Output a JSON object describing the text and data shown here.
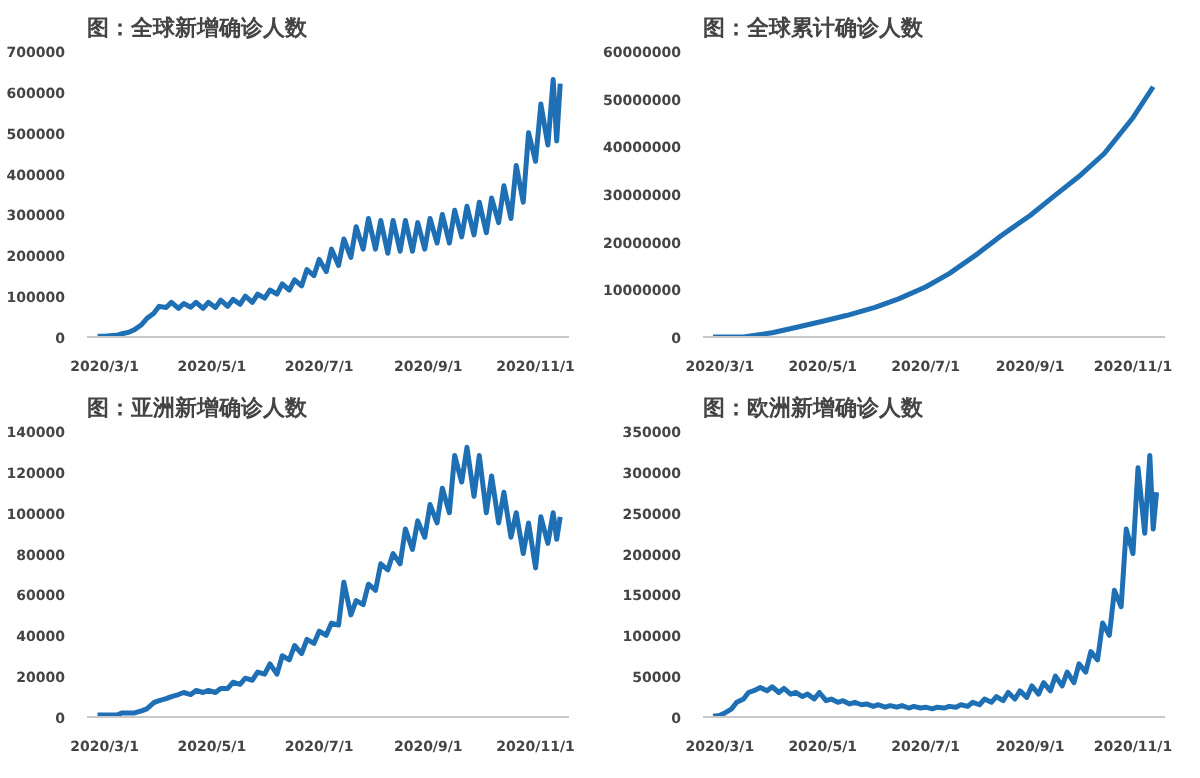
{
  "chart_data": [
    {
      "type": "line",
      "title": "图：全球新增确诊人数",
      "grid": false,
      "marker": "none",
      "line_style": "solid",
      "xlim": [
        "2020-02-20",
        "2020-11-20"
      ],
      "ylim": [
        0,
        700000
      ],
      "xticks": [
        {
          "value": "2020-03-01",
          "label": "2020/3/1"
        },
        {
          "value": "2020-05-01",
          "label": "2020/5/1"
        },
        {
          "value": "2020-07-01",
          "label": "2020/7/1"
        },
        {
          "value": "2020-09-01",
          "label": "2020/9/1"
        },
        {
          "value": "2020-11-01",
          "label": "2020/11/1"
        }
      ],
      "yticks": [
        0,
        100000,
        200000,
        300000,
        400000,
        500000,
        600000,
        700000
      ],
      "x": [
        "2020-02-26",
        "2020-03-01",
        "2020-03-04",
        "2020-03-08",
        "2020-03-11",
        "2020-03-15",
        "2020-03-18",
        "2020-03-22",
        "2020-03-25",
        "2020-03-29",
        "2020-04-01",
        "2020-04-05",
        "2020-04-08",
        "2020-04-12",
        "2020-04-15",
        "2020-04-19",
        "2020-04-22",
        "2020-04-26",
        "2020-04-29",
        "2020-05-03",
        "2020-05-06",
        "2020-05-10",
        "2020-05-13",
        "2020-05-17",
        "2020-05-20",
        "2020-05-24",
        "2020-05-27",
        "2020-05-31",
        "2020-06-03",
        "2020-06-07",
        "2020-06-10",
        "2020-06-14",
        "2020-06-17",
        "2020-06-21",
        "2020-06-24",
        "2020-06-28",
        "2020-07-01",
        "2020-07-05",
        "2020-07-08",
        "2020-07-12",
        "2020-07-15",
        "2020-07-19",
        "2020-07-22",
        "2020-07-26",
        "2020-07-29",
        "2020-08-02",
        "2020-08-05",
        "2020-08-09",
        "2020-08-12",
        "2020-08-16",
        "2020-08-19",
        "2020-08-23",
        "2020-08-26",
        "2020-08-30",
        "2020-09-02",
        "2020-09-06",
        "2020-09-09",
        "2020-09-13",
        "2020-09-16",
        "2020-09-20",
        "2020-09-23",
        "2020-09-27",
        "2020-09-30",
        "2020-10-04",
        "2020-10-07",
        "2020-10-11",
        "2020-10-14",
        "2020-10-18",
        "2020-10-21",
        "2020-10-25",
        "2020-10-28",
        "2020-11-01",
        "2020-11-04",
        "2020-11-08",
        "2020-11-11",
        "2020-11-13",
        "2020-11-15"
      ],
      "series": [
        {
          "color": "#1f6fb5",
          "values": [
            2000,
            2000,
            3000,
            4000,
            8000,
            12000,
            18000,
            30000,
            45000,
            58000,
            75000,
            72000,
            85000,
            70000,
            82000,
            73000,
            85000,
            70000,
            85000,
            72000,
            90000,
            75000,
            92000,
            80000,
            100000,
            85000,
            105000,
            95000,
            115000,
            105000,
            130000,
            115000,
            140000,
            125000,
            165000,
            150000,
            190000,
            160000,
            215000,
            175000,
            240000,
            195000,
            270000,
            215000,
            290000,
            215000,
            285000,
            205000,
            285000,
            210000,
            285000,
            210000,
            280000,
            215000,
            290000,
            230000,
            300000,
            230000,
            310000,
            245000,
            320000,
            250000,
            330000,
            255000,
            340000,
            280000,
            370000,
            290000,
            420000,
            330000,
            500000,
            430000,
            570000,
            470000,
            630000,
            480000,
            620000
          ]
        }
      ]
    },
    {
      "type": "line",
      "title": "图：全球累计确诊人数",
      "grid": false,
      "marker": "none",
      "line_style": "solid",
      "xlim": [
        "2020-02-20",
        "2020-11-20"
      ],
      "ylim": [
        0,
        60000000
      ],
      "xticks": [
        {
          "value": "2020-03-01",
          "label": "2020/3/1"
        },
        {
          "value": "2020-05-01",
          "label": "2020/5/1"
        },
        {
          "value": "2020-07-01",
          "label": "2020/7/1"
        },
        {
          "value": "2020-09-01",
          "label": "2020/9/1"
        },
        {
          "value": "2020-11-01",
          "label": "2020/11/1"
        }
      ],
      "yticks": [
        0,
        10000000,
        20000000,
        30000000,
        40000000,
        50000000,
        60000000
      ],
      "x": [
        "2020-02-26",
        "2020-03-15",
        "2020-04-01",
        "2020-04-15",
        "2020-05-01",
        "2020-05-15",
        "2020-06-01",
        "2020-06-15",
        "2020-07-01",
        "2020-07-15",
        "2020-08-01",
        "2020-08-15",
        "2020-09-01",
        "2020-09-15",
        "2020-10-01",
        "2020-10-15",
        "2020-11-01",
        "2020-11-13"
      ],
      "series": [
        {
          "color": "#1f6fb5",
          "values": [
            0,
            0,
            900000,
            2000000,
            3300000,
            4500000,
            6200000,
            8000000,
            10500000,
            13300000,
            17500000,
            21300000,
            25500000,
            29500000,
            34000000,
            38500000,
            46000000,
            52500000
          ]
        }
      ]
    },
    {
      "type": "line",
      "title": "图：亚洲新增确诊人数",
      "grid": false,
      "marker": "none",
      "line_style": "solid",
      "xlim": [
        "2020-02-20",
        "2020-11-20"
      ],
      "ylim": [
        0,
        140000
      ],
      "xticks": [
        {
          "value": "2020-03-01",
          "label": "2020/3/1"
        },
        {
          "value": "2020-05-01",
          "label": "2020/5/1"
        },
        {
          "value": "2020-07-01",
          "label": "2020/7/1"
        },
        {
          "value": "2020-09-01",
          "label": "2020/9/1"
        },
        {
          "value": "2020-11-01",
          "label": "2020/11/1"
        }
      ],
      "yticks": [
        0,
        20000,
        40000,
        60000,
        80000,
        100000,
        120000,
        140000
      ],
      "x": [
        "2020-02-26",
        "2020-03-01",
        "2020-03-04",
        "2020-03-08",
        "2020-03-11",
        "2020-03-15",
        "2020-03-18",
        "2020-03-22",
        "2020-03-25",
        "2020-03-29",
        "2020-04-01",
        "2020-04-05",
        "2020-04-08",
        "2020-04-12",
        "2020-04-15",
        "2020-04-19",
        "2020-04-22",
        "2020-04-26",
        "2020-04-29",
        "2020-05-03",
        "2020-05-06",
        "2020-05-10",
        "2020-05-13",
        "2020-05-17",
        "2020-05-20",
        "2020-05-24",
        "2020-05-27",
        "2020-05-31",
        "2020-06-03",
        "2020-06-07",
        "2020-06-10",
        "2020-06-14",
        "2020-06-17",
        "2020-06-21",
        "2020-06-24",
        "2020-06-28",
        "2020-07-01",
        "2020-07-05",
        "2020-07-08",
        "2020-07-12",
        "2020-07-15",
        "2020-07-19",
        "2020-07-22",
        "2020-07-26",
        "2020-07-29",
        "2020-08-02",
        "2020-08-05",
        "2020-08-09",
        "2020-08-12",
        "2020-08-16",
        "2020-08-19",
        "2020-08-23",
        "2020-08-26",
        "2020-08-30",
        "2020-09-02",
        "2020-09-06",
        "2020-09-09",
        "2020-09-13",
        "2020-09-16",
        "2020-09-20",
        "2020-09-23",
        "2020-09-27",
        "2020-09-30",
        "2020-10-04",
        "2020-10-07",
        "2020-10-11",
        "2020-10-14",
        "2020-10-18",
        "2020-10-21",
        "2020-10-25",
        "2020-10-28",
        "2020-11-01",
        "2020-11-04",
        "2020-11-08",
        "2020-11-11",
        "2020-11-13",
        "2020-11-15"
      ],
      "series": [
        {
          "color": "#1f6fb5",
          "values": [
            1000,
            1000,
            1000,
            1000,
            2000,
            2000,
            2000,
            3000,
            4000,
            7000,
            8000,
            9000,
            10000,
            11000,
            12000,
            11000,
            13000,
            12000,
            13000,
            12000,
            14000,
            14000,
            17000,
            16000,
            19000,
            18000,
            22000,
            21000,
            26000,
            21000,
            30000,
            28000,
            35000,
            31000,
            38000,
            36000,
            42000,
            40000,
            46000,
            45000,
            66000,
            50000,
            57000,
            55000,
            65000,
            62000,
            75000,
            72000,
            80000,
            75000,
            92000,
            82000,
            96000,
            88000,
            104000,
            95000,
            112000,
            100000,
            128000,
            115000,
            132000,
            108000,
            128000,
            100000,
            118000,
            95000,
            110000,
            88000,
            100000,
            80000,
            95000,
            73000,
            98000,
            85000,
            100000,
            87000,
            98000
          ]
        }
      ]
    },
    {
      "type": "line",
      "title": "图：欧洲新增确诊人数",
      "grid": false,
      "marker": "none",
      "line_style": "solid",
      "xlim": [
        "2020-02-20",
        "2020-11-20"
      ],
      "ylim": [
        0,
        350000
      ],
      "xticks": [
        {
          "value": "2020-03-01",
          "label": "2020/3/1"
        },
        {
          "value": "2020-05-01",
          "label": "2020/5/1"
        },
        {
          "value": "2020-07-01",
          "label": "2020/7/1"
        },
        {
          "value": "2020-09-01",
          "label": "2020/9/1"
        },
        {
          "value": "2020-11-01",
          "label": "2020/11/1"
        }
      ],
      "yticks": [
        0,
        50000,
        100000,
        150000,
        200000,
        250000,
        300000,
        350000
      ],
      "x": [
        "2020-02-26",
        "2020-03-01",
        "2020-03-04",
        "2020-03-08",
        "2020-03-11",
        "2020-03-15",
        "2020-03-18",
        "2020-03-22",
        "2020-03-25",
        "2020-03-29",
        "2020-04-01",
        "2020-04-05",
        "2020-04-08",
        "2020-04-12",
        "2020-04-15",
        "2020-04-19",
        "2020-04-22",
        "2020-04-26",
        "2020-04-29",
        "2020-05-03",
        "2020-05-06",
        "2020-05-10",
        "2020-05-13",
        "2020-05-17",
        "2020-05-20",
        "2020-05-24",
        "2020-05-27",
        "2020-05-31",
        "2020-06-03",
        "2020-06-07",
        "2020-06-10",
        "2020-06-14",
        "2020-06-17",
        "2020-06-21",
        "2020-06-24",
        "2020-06-28",
        "2020-07-01",
        "2020-07-05",
        "2020-07-08",
        "2020-07-12",
        "2020-07-15",
        "2020-07-19",
        "2020-07-22",
        "2020-07-26",
        "2020-07-29",
        "2020-08-02",
        "2020-08-05",
        "2020-08-09",
        "2020-08-12",
        "2020-08-16",
        "2020-08-19",
        "2020-08-23",
        "2020-08-26",
        "2020-08-30",
        "2020-09-02",
        "2020-09-06",
        "2020-09-09",
        "2020-09-13",
        "2020-09-16",
        "2020-09-20",
        "2020-09-23",
        "2020-09-27",
        "2020-09-30",
        "2020-10-04",
        "2020-10-07",
        "2020-10-11",
        "2020-10-14",
        "2020-10-18",
        "2020-10-21",
        "2020-10-25",
        "2020-10-28",
        "2020-11-01",
        "2020-11-04",
        "2020-11-08",
        "2020-11-11",
        "2020-11-13",
        "2020-11-15"
      ],
      "series": [
        {
          "color": "#1f6fb5",
          "values": [
            1000,
            2000,
            5000,
            10000,
            18000,
            22000,
            30000,
            33000,
            36000,
            32000,
            37000,
            30000,
            35000,
            28000,
            30000,
            25000,
            28000,
            22000,
            30000,
            20000,
            22000,
            18000,
            20000,
            16000,
            18000,
            15000,
            16000,
            13000,
            15000,
            12000,
            14000,
            12000,
            14000,
            11000,
            13000,
            11000,
            12000,
            10000,
            12000,
            11000,
            13000,
            12000,
            15000,
            13000,
            18000,
            15000,
            22000,
            18000,
            25000,
            20000,
            30000,
            22000,
            32000,
            24000,
            38000,
            28000,
            42000,
            32000,
            50000,
            38000,
            55000,
            42000,
            65000,
            55000,
            80000,
            70000,
            115000,
            100000,
            155000,
            135000,
            230000,
            200000,
            305000,
            225000,
            320000,
            230000,
            275000
          ]
        }
      ]
    }
  ]
}
